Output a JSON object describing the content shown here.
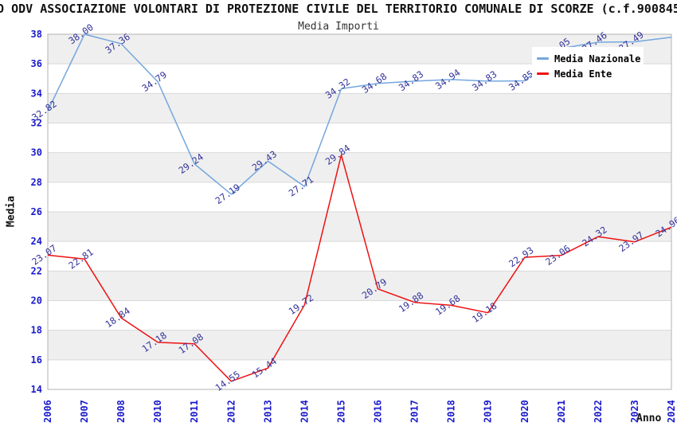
{
  "chart_data": {
    "type": "line",
    "title": "O ODV ASSOCIAZIONE VOLONTARI DI PROTEZIONE CIVILE DEL TERRITORIO COMUNALE DI SCORZE (c.f.900845",
    "subtitle": "Media Importi",
    "xlabel": "Anno",
    "ylabel": "Media",
    "ylim": [
      14,
      38
    ],
    "ytick_step": 2,
    "grid": true,
    "legend_position": "top-right",
    "categories": [
      "2006",
      "2007",
      "2008",
      "2010",
      "2011",
      "2012",
      "2013",
      "2014",
      "2015",
      "2016",
      "2017",
      "2018",
      "2019",
      "2020",
      "2021",
      "2022",
      "2023",
      "2024"
    ],
    "series": [
      {
        "name": "Media Nazionale",
        "color": "#74a7dd",
        "values": [
          32.82,
          38.0,
          37.36,
          34.79,
          29.24,
          27.19,
          29.43,
          27.71,
          34.32,
          34.68,
          34.83,
          34.94,
          34.83,
          34.85,
          37.05,
          37.46,
          37.49,
          37.8
        ],
        "labels": [
          "32.82",
          "38.00",
          "37.36",
          "34.79",
          "29.24",
          "27.19",
          "29.43",
          "27.71",
          "34.32",
          "34.68",
          "34.83",
          "34.94",
          "34.83",
          "34.85",
          "37.05",
          "37.46",
          "37.49",
          ""
        ]
      },
      {
        "name": "Media Ente",
        "color": "#ee1111",
        "values": [
          23.07,
          22.81,
          18.84,
          17.18,
          17.08,
          14.55,
          15.44,
          19.72,
          29.84,
          20.79,
          19.88,
          19.68,
          19.18,
          22.93,
          23.06,
          24.32,
          23.97,
          24.96
        ],
        "labels": [
          "23.07",
          "22.81",
          "18.84",
          "17.18",
          "17.08",
          "14.55",
          "15.44",
          "19.72",
          "29.84",
          "20.79",
          "19.88",
          "19.68",
          "19.18",
          "22.93",
          "23.06",
          "24.32",
          "23.97",
          "24.96"
        ]
      }
    ],
    "style": {
      "axis_tick_color": "#1a1acc",
      "point_label_color": "#333399",
      "band_color": "#efefef",
      "grid_color": "#d9d9d9",
      "border_color": "#b3b3b3"
    }
  }
}
